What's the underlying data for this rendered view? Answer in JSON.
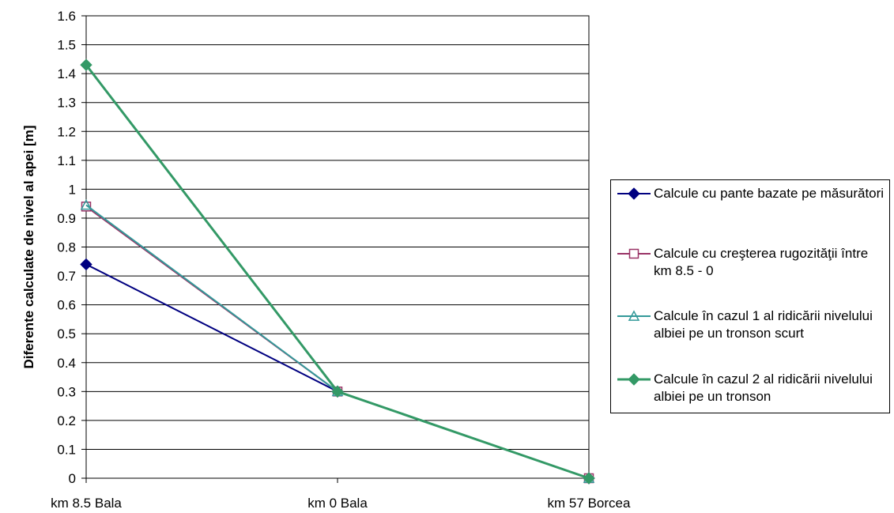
{
  "chart_data": {
    "type": "line",
    "title": "",
    "xlabel": "",
    "ylabel": "Diferente calculate de nivel al apei [m]",
    "categories": [
      "km 8.5 Bala",
      "km 0 Bala",
      "km 57 Borcea"
    ],
    "ylim": [
      0,
      1.6
    ],
    "yticks": [
      "0",
      "0.1",
      "0.2",
      "0.3",
      "0.4",
      "0.5",
      "0.6",
      "0.7",
      "0.8",
      "0.9",
      "1",
      "1.1",
      "1.2",
      "1.3",
      "1.4",
      "1.5",
      "1.6"
    ],
    "grid": "horizontal",
    "legend_position": "right",
    "series": [
      {
        "name": "Calcule cu pante bazate pe măsurători",
        "values": [
          0.74,
          0.3,
          0.0
        ],
        "color": "#000080",
        "marker": "filled-diamond"
      },
      {
        "name": "Calcule cu creşterea rugozităţii între km 8.5 - 0",
        "values": [
          0.94,
          0.3,
          0.0
        ],
        "color": "#993366",
        "marker": "open-square"
      },
      {
        "name": "Calcule în cazul 1 al ridicării nivelului albiei pe un tronson scurt",
        "values": [
          0.945,
          0.3,
          0.0
        ],
        "color": "#339999",
        "marker": "open-triangle"
      },
      {
        "name": "Calcule în cazul 2 al ridicării nivelului albiei pe un tronson",
        "values": [
          1.43,
          0.3,
          0.0
        ],
        "color": "#339966",
        "marker": "filled-diamond"
      }
    ]
  }
}
